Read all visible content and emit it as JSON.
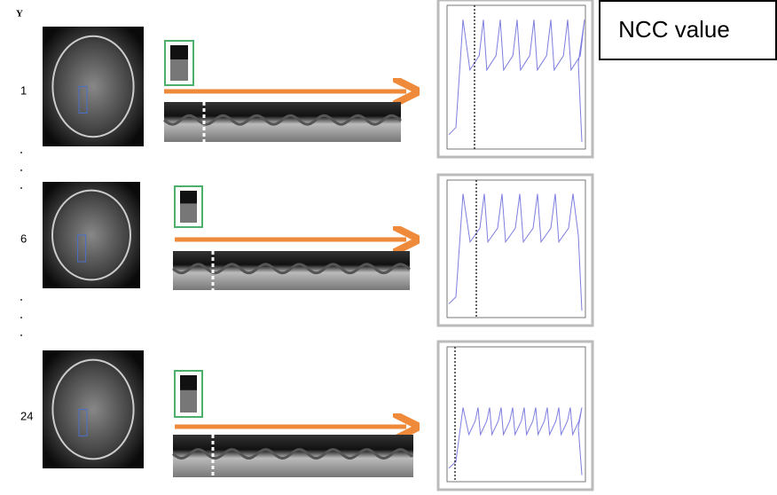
{
  "axis_label": "Y",
  "rows": [
    {
      "label": "1"
    },
    {
      "label": "6"
    },
    {
      "label": "24"
    }
  ],
  "annotation": "NCC value"
}
